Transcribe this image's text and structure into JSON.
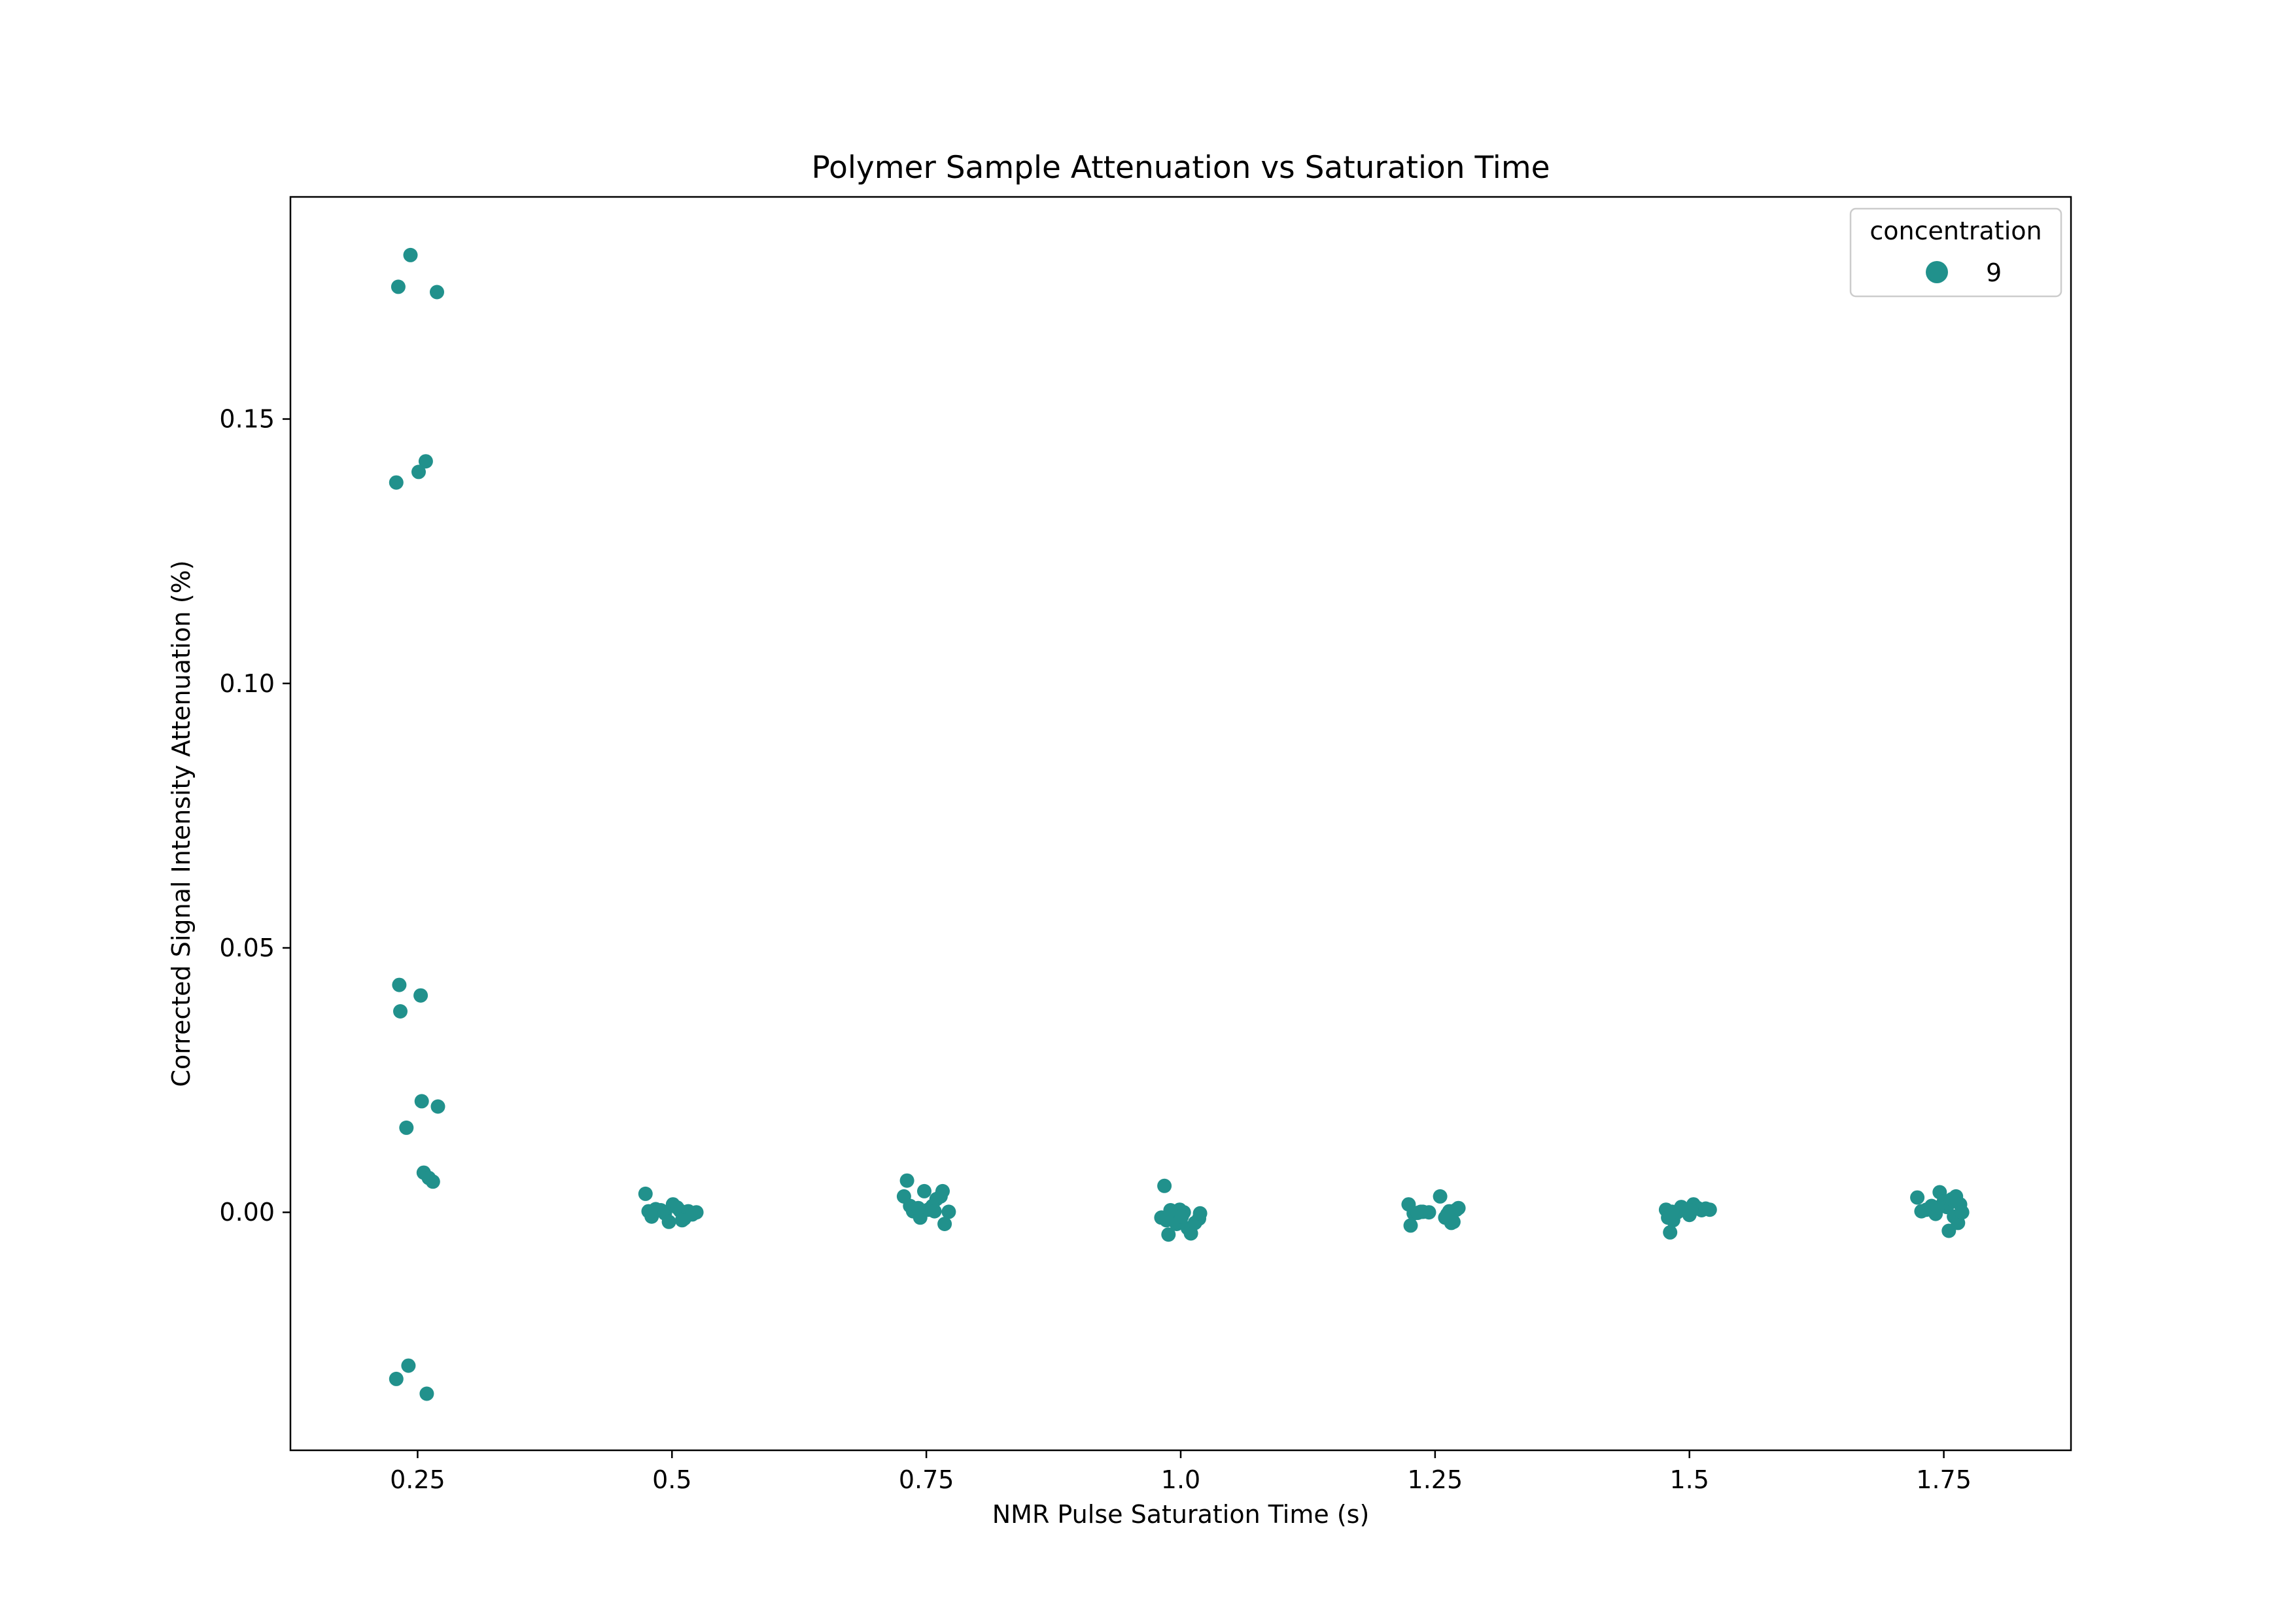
{
  "chart_data": {
    "type": "scatter",
    "title": "Polymer Sample Attenuation vs Saturation Time",
    "xlabel": "NMR Pulse Saturation Time (s)",
    "ylabel": "Corrected Signal Intensity Attenuation (%)",
    "categories": [
      "0.25",
      "0.5",
      "0.75",
      "1.0",
      "1.25",
      "1.5",
      "1.75"
    ],
    "y_ticks": [
      0.0,
      0.05,
      0.1,
      0.15
    ],
    "y_tick_labels": [
      "0.00",
      "0.05",
      "0.10",
      "0.15"
    ],
    "ylim": [
      -0.045,
      0.192
    ],
    "xlim": [
      0.125,
      1.875
    ],
    "grid": false,
    "legend": {
      "title": "concentration",
      "placement": "top-right",
      "entries": [
        {
          "label": "9",
          "color": "#21918c"
        }
      ]
    },
    "marker_color": "#21918c",
    "series": [
      {
        "name": "9",
        "points": [
          {
            "x": 0.243,
            "y": 0.181
          },
          {
            "x": 0.231,
            "y": 0.175
          },
          {
            "x": 0.269,
            "y": 0.174
          },
          {
            "x": 0.258,
            "y": 0.142
          },
          {
            "x": 0.251,
            "y": 0.14
          },
          {
            "x": 0.229,
            "y": 0.138
          },
          {
            "x": 0.232,
            "y": 0.043
          },
          {
            "x": 0.253,
            "y": 0.041
          },
          {
            "x": 0.233,
            "y": 0.038
          },
          {
            "x": 0.254,
            "y": 0.021
          },
          {
            "x": 0.27,
            "y": 0.02
          },
          {
            "x": 0.239,
            "y": 0.016
          },
          {
            "x": 0.256,
            "y": 0.0075
          },
          {
            "x": 0.261,
            "y": 0.0065
          },
          {
            "x": 0.265,
            "y": 0.0058
          },
          {
            "x": 0.241,
            "y": -0.029
          },
          {
            "x": 0.229,
            "y": -0.0315
          },
          {
            "x": 0.259,
            "y": -0.0343
          },
          {
            "x": 0.474,
            "y": 0.0035
          },
          {
            "x": 0.477,
            "y": 0.0002
          },
          {
            "x": 0.48,
            "y": -0.0008
          },
          {
            "x": 0.484,
            "y": 0.0006
          },
          {
            "x": 0.489,
            "y": 0.0004
          },
          {
            "x": 0.493,
            "y": -0.0002
          },
          {
            "x": 0.497,
            "y": -0.0018
          },
          {
            "x": 0.501,
            "y": 0.0015
          },
          {
            "x": 0.505,
            "y": 0.0009
          },
          {
            "x": 0.508,
            "y": 0.0003
          },
          {
            "x": 0.512,
            "y": -0.0012
          },
          {
            "x": 0.516,
            "y": 0.0002
          },
          {
            "x": 0.52,
            "y": -0.0004
          },
          {
            "x": 0.524,
            "y": 0.0
          },
          {
            "x": 0.479,
            "y": 0.0001
          },
          {
            "x": 0.51,
            "y": -0.0015
          },
          {
            "x": 0.728,
            "y": 0.003
          },
          {
            "x": 0.731,
            "y": 0.006
          },
          {
            "x": 0.734,
            "y": 0.0012
          },
          {
            "x": 0.737,
            "y": 0.0002
          },
          {
            "x": 0.744,
            "y": -0.001
          },
          {
            "x": 0.748,
            "y": 0.004
          },
          {
            "x": 0.752,
            "y": 0.0005
          },
          {
            "x": 0.756,
            "y": 0.0012
          },
          {
            "x": 0.76,
            "y": 0.0025
          },
          {
            "x": 0.764,
            "y": 0.003
          },
          {
            "x": 0.766,
            "y": 0.004
          },
          {
            "x": 0.768,
            "y": -0.0022
          },
          {
            "x": 0.772,
            "y": 0.0001
          },
          {
            "x": 0.742,
            "y": 0.0008
          },
          {
            "x": 0.758,
            "y": 0.0002
          },
          {
            "x": 0.981,
            "y": -0.001
          },
          {
            "x": 0.984,
            "y": 0.005
          },
          {
            "x": 0.986,
            "y": -0.0015
          },
          {
            "x": 0.988,
            "y": -0.0042
          },
          {
            "x": 0.992,
            "y": 0.0001
          },
          {
            "x": 0.996,
            "y": -0.0022
          },
          {
            "x": 0.999,
            "y": 0.0005
          },
          {
            "x": 1.003,
            "y": 0.0
          },
          {
            "x": 1.007,
            "y": -0.003
          },
          {
            "x": 1.01,
            "y": -0.004
          },
          {
            "x": 1.014,
            "y": -0.002
          },
          {
            "x": 1.018,
            "y": -0.0012
          },
          {
            "x": 1.019,
            "y": -0.0002
          },
          {
            "x": 0.99,
            "y": 0.0004
          },
          {
            "x": 1.001,
            "y": -0.0008
          },
          {
            "x": 1.224,
            "y": 0.0015
          },
          {
            "x": 1.226,
            "y": -0.0025
          },
          {
            "x": 1.229,
            "y": -0.0002
          },
          {
            "x": 1.233,
            "y": -0.0001
          },
          {
            "x": 1.238,
            "y": 0.0001
          },
          {
            "x": 1.244,
            "y": 0.0
          },
          {
            "x": 1.255,
            "y": 0.003
          },
          {
            "x": 1.26,
            "y": -0.001
          },
          {
            "x": 1.264,
            "y": 0.0002
          },
          {
            "x": 1.266,
            "y": -0.002
          },
          {
            "x": 1.268,
            "y": -0.0018
          },
          {
            "x": 1.271,
            "y": 0.0005
          },
          {
            "x": 1.273,
            "y": 0.0008
          },
          {
            "x": 1.236,
            "y": 0.0001
          },
          {
            "x": 1.262,
            "y": -0.0004
          },
          {
            "x": 1.477,
            "y": 0.0005
          },
          {
            "x": 1.479,
            "y": -0.001
          },
          {
            "x": 1.481,
            "y": -0.0038
          },
          {
            "x": 1.484,
            "y": -0.0015
          },
          {
            "x": 1.488,
            "y": 0.0
          },
          {
            "x": 1.492,
            "y": 0.001
          },
          {
            "x": 1.496,
            "y": 0.0006
          },
          {
            "x": 1.5,
            "y": -0.0005
          },
          {
            "x": 1.504,
            "y": 0.0015
          },
          {
            "x": 1.508,
            "y": 0.0008
          },
          {
            "x": 1.512,
            "y": 0.0004
          },
          {
            "x": 1.516,
            "y": 0.0007
          },
          {
            "x": 1.52,
            "y": 0.0005
          },
          {
            "x": 1.483,
            "y": 0.0001
          },
          {
            "x": 1.502,
            "y": 0.0003
          },
          {
            "x": 1.724,
            "y": 0.0028
          },
          {
            "x": 1.728,
            "y": 0.0002
          },
          {
            "x": 1.733,
            "y": 0.0005
          },
          {
            "x": 1.738,
            "y": 0.0012
          },
          {
            "x": 1.742,
            "y": -0.0003
          },
          {
            "x": 1.746,
            "y": 0.0038
          },
          {
            "x": 1.75,
            "y": 0.002
          },
          {
            "x": 1.753,
            "y": 0.001
          },
          {
            "x": 1.755,
            "y": -0.0035
          },
          {
            "x": 1.758,
            "y": 0.0025
          },
          {
            "x": 1.76,
            "y": -0.0008
          },
          {
            "x": 1.762,
            "y": 0.003
          },
          {
            "x": 1.764,
            "y": -0.002
          },
          {
            "x": 1.766,
            "y": 0.0015
          },
          {
            "x": 1.768,
            "y": 0.0
          },
          {
            "x": 1.744,
            "y": 0.0009
          }
        ]
      }
    ]
  }
}
